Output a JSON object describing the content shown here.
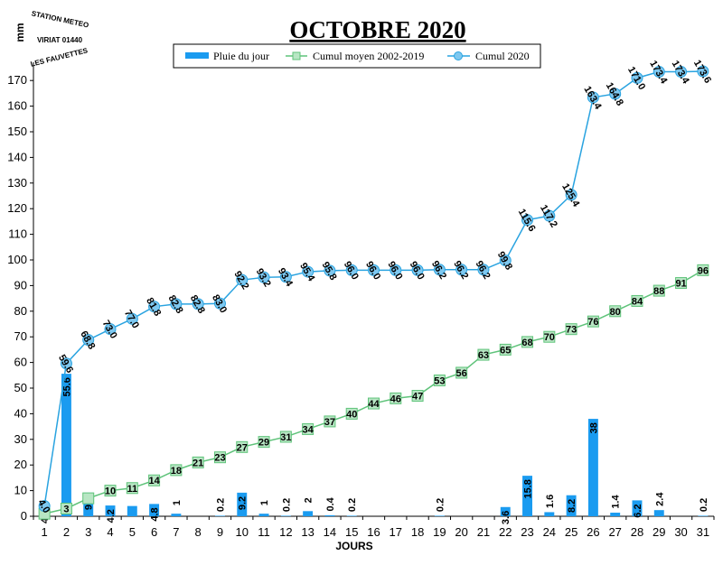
{
  "chart_data": {
    "type": "bar",
    "title": "OCTOBRE 2020",
    "xlabel": "JOURS",
    "ylabel": "mm",
    "ylim": [
      0,
      175
    ],
    "yticks": [
      0,
      10,
      20,
      30,
      40,
      50,
      60,
      70,
      80,
      90,
      100,
      110,
      120,
      130,
      140,
      150,
      160,
      170
    ],
    "categories": [
      "1",
      "2",
      "3",
      "4",
      "5",
      "6",
      "7",
      "8",
      "9",
      "10",
      "11",
      "12",
      "13",
      "14",
      "15",
      "16",
      "17",
      "18",
      "19",
      "20",
      "21",
      "22",
      "23",
      "24",
      "25",
      "26",
      "27",
      "28",
      "29",
      "30",
      "31"
    ],
    "legend_position": "top",
    "series": [
      {
        "name": "Pluie du jour",
        "kind": "bar",
        "color": "#1a9bf0",
        "values": [
          4.0,
          55.6,
          9.2,
          4.2,
          4.0,
          4.8,
          1,
          0,
          0.2,
          9.2,
          1,
          0.2,
          2,
          0.4,
          0.2,
          0,
          0,
          0,
          0.2,
          0,
          0,
          3.6,
          15.8,
          1.6,
          8.2,
          38,
          1.4,
          6.2,
          2.4,
          0,
          0.2
        ],
        "labels": [
          "4.0",
          "55.6",
          "9.2",
          "4.2",
          "",
          "4.8",
          "1",
          "",
          "0.2",
          "9.2",
          "1",
          "0.2",
          "2",
          "0.4",
          "0.2",
          "",
          "",
          "",
          "0.2",
          "",
          "",
          "3.6",
          "15.8",
          "1.6",
          "8.2",
          "38",
          "1.4",
          "6.2",
          "2.4",
          "",
          "0.2"
        ]
      },
      {
        "name": "Cumul moyen 2002-2019",
        "kind": "line",
        "color": "#5fc37a",
        "marker_fill": "#b8e6c4",
        "values": [
          1,
          3,
          7,
          10,
          11,
          14,
          18,
          21,
          23,
          27,
          29,
          31,
          34,
          37,
          40,
          44,
          46,
          47,
          53,
          56,
          63,
          65,
          68,
          70,
          73,
          76,
          80,
          84,
          88,
          91,
          96
        ],
        "labels": [
          "",
          "3",
          "",
          "10",
          "11",
          "14",
          "18",
          "21",
          "23",
          "27",
          "29",
          "31",
          "34",
          "37",
          "40",
          "44",
          "46",
          "47",
          "53",
          "56",
          "63",
          "65",
          "68",
          "70",
          "73",
          "76",
          "80",
          "84",
          "88",
          "91",
          "96"
        ]
      },
      {
        "name": "Cumul 2020",
        "kind": "line",
        "color": "#29a3e0",
        "marker_fill": "#7ec8f0",
        "values": [
          4.0,
          59.6,
          68.8,
          73.0,
          77.0,
          81.8,
          82.8,
          82.8,
          83.0,
          92.2,
          93.2,
          93.4,
          95.4,
          95.8,
          96.0,
          96.0,
          96.0,
          96.0,
          96.2,
          96.2,
          96.2,
          99.8,
          115.6,
          117.2,
          125.4,
          163.4,
          164.8,
          171.0,
          173.4,
          173.4,
          173.6
        ],
        "labels": [
          "4.0",
          "59.6",
          "68.8",
          "73.0",
          "77.0",
          "81.8",
          "82.8",
          "82.8",
          "83.0",
          "92.2",
          "93.2",
          "93.4",
          "95.4",
          "95.8",
          "96.0",
          "96.0",
          "96.0",
          "96.0",
          "96.2",
          "96.2",
          "96.2",
          "99.8",
          "115.6",
          "117.2",
          "125.4",
          "163.4",
          "164.8",
          "171.0",
          "173.4",
          "173.4",
          "173.6"
        ]
      }
    ]
  },
  "stamp": {
    "line1": "STATION METEO",
    "line2": "VIRIAT 01440",
    "line3": "LES FAUVETTES"
  }
}
